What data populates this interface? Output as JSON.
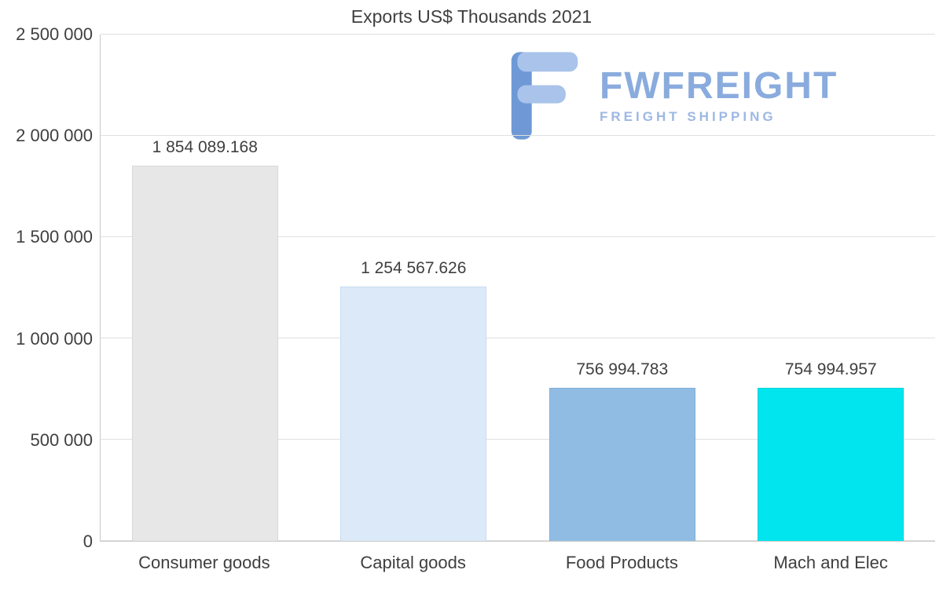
{
  "chart_data": {
    "type": "bar",
    "title": "Exports US$ Thousands 2021",
    "categories": [
      "Consumer goods",
      "Capital goods",
      "Food Products",
      "Mach and Elec"
    ],
    "values": [
      1854089.168,
      1254567.626,
      756994.783,
      754994.957
    ],
    "value_labels": [
      "1 854 089.168",
      "1 254 567.626",
      "756 994.783",
      "754 994.957"
    ],
    "bar_colors": [
      "#e7e7e7",
      "#dce9f8",
      "#90bce3",
      "#00e5ee"
    ],
    "bar_border_colors": [
      "#d8d8d8",
      "#c8dcf2",
      "#7fb0da",
      "#00d4dd"
    ],
    "xlabel": "",
    "ylabel": "",
    "ylim": [
      0,
      2500000
    ],
    "yticks": [
      0,
      500000,
      1000000,
      1500000,
      2000000,
      2500000
    ],
    "ytick_labels": [
      "0",
      "500 000",
      "1 000 000",
      "1 500 000",
      "2 000 000",
      "2 500 000"
    ],
    "grid": "horizontal",
    "legend": "none"
  },
  "watermark": {
    "brand": "FWFREIGHT",
    "tagline": "FREIGHT SHIPPING",
    "brand_color": "#8aabdd",
    "icon_color_dark": "#6e99d6",
    "icon_color_light": "#a9c3ea"
  }
}
